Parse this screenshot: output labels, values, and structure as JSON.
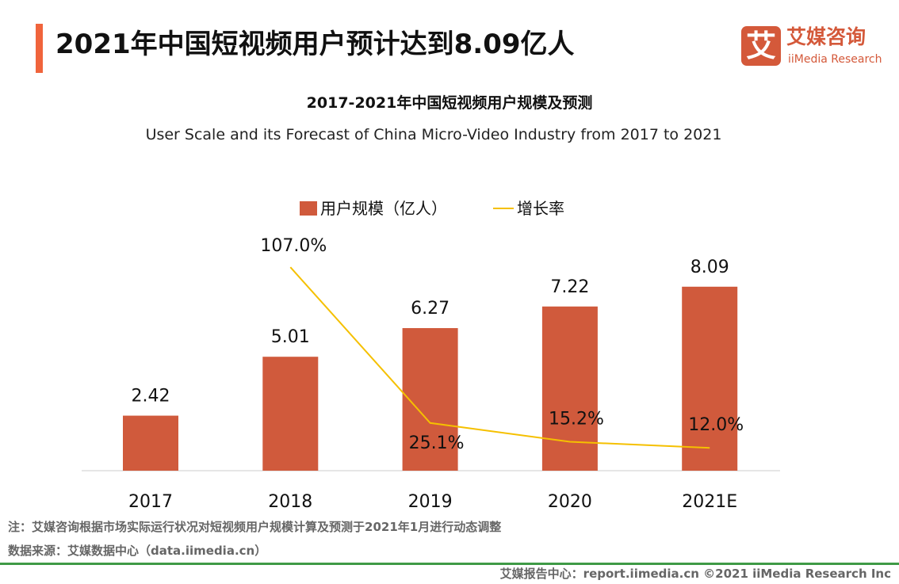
{
  "header": {
    "title": "2021年中国短视频用户预计达到8.09亿人",
    "logo_glyph": "艾",
    "logo_cn": "艾媒咨询",
    "logo_en": "iiMedia Research"
  },
  "chart_data": {
    "type": "bar+line",
    "title": "2017-2021年中国短视频用户规模及预测",
    "subtitle": "User Scale and its Forecast of China Micro-Video Industry from 2017 to 2021",
    "categories": [
      "2017",
      "2018",
      "2019",
      "2020",
      "2021E"
    ],
    "series": [
      {
        "name": "用户规模（亿人）",
        "type": "bar",
        "values": [
          2.42,
          5.01,
          6.27,
          7.22,
          8.09
        ],
        "labels": [
          "2.42",
          "5.01",
          "6.27",
          "7.22",
          "8.09"
        ],
        "color": "#d05a3c"
      },
      {
        "name": "增长率",
        "type": "line",
        "values": [
          null,
          107.0,
          25.1,
          15.2,
          12.0
        ],
        "labels": [
          "",
          "107.0%",
          "25.1%",
          "15.2%",
          "12.0%"
        ],
        "color": "#f5c000"
      }
    ],
    "legend_position": "top",
    "grid": false
  },
  "footer": {
    "note": "注：艾媒咨询根据市场实际运行状况对短视频用户规模计算及预测于2021年1月进行动态调整",
    "source": "数据来源：艾媒数据中心（data.iimedia.cn）",
    "credit": "艾媒报告中心：report.iimedia.cn  ©2021  iiMedia Research  Inc"
  }
}
